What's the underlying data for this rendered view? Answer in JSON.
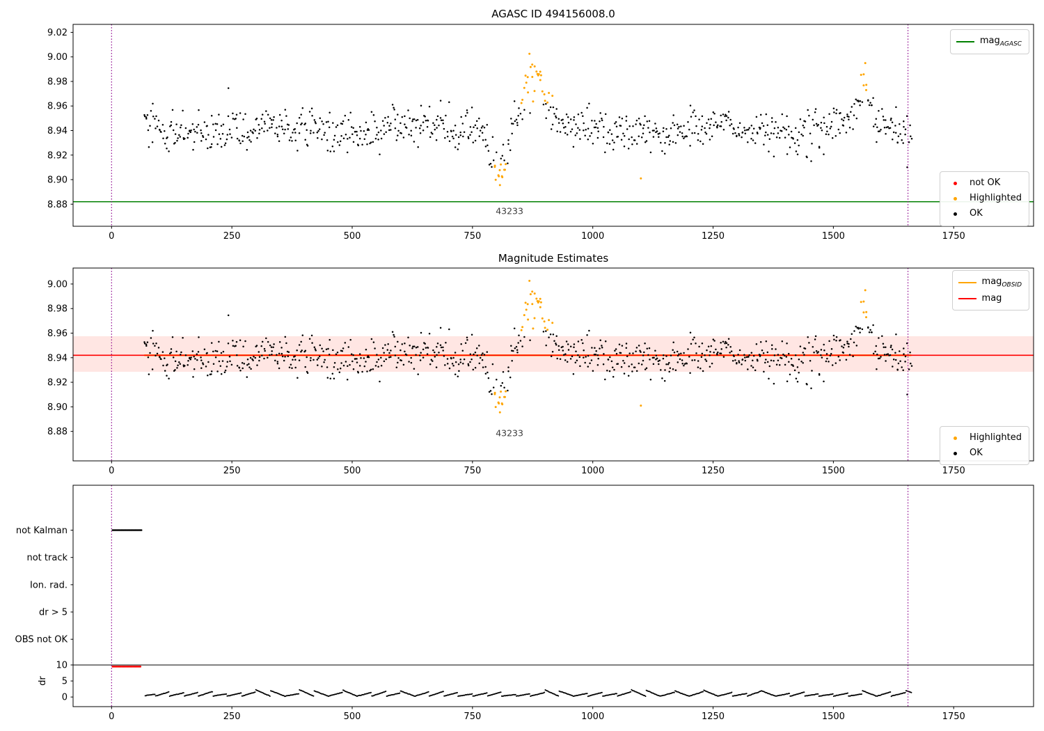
{
  "colors": {
    "ok": "#000000",
    "highlighted": "#ffa500",
    "not_ok": "#ff0000",
    "mag_agasc": "#008000",
    "mag": "#ff0000",
    "vline": "#8b008b",
    "band": "rgba(255,60,40,0.13)",
    "annotation": "#3c3c3c"
  },
  "scatter_spec": {
    "seed": 42,
    "n": 880,
    "x_start": 68,
    "x_end": 1662,
    "base_mag": 8.941,
    "noise_sd": 0.008,
    "waves": [
      {
        "period": 300,
        "amp": 0.0035,
        "phase": 0.5
      },
      {
        "period": 85,
        "amp": 0.0028,
        "phase": 2.1
      },
      {
        "period": 37,
        "amp": 0.002,
        "phase": 4.0
      }
    ],
    "events": [
      {
        "center": 805,
        "width": 14,
        "amp": -0.028
      },
      {
        "center": 878,
        "width": 20,
        "amp": 0.048
      },
      {
        "center": 1563,
        "width": 12,
        "amp": 0.034
      }
    ],
    "highlight_rules": [
      {
        "xmin": 843,
        "xmax": 918,
        "ymin": 8.962
      },
      {
        "xmin": 1546,
        "xmax": 1584,
        "ymin": 8.968
      },
      {
        "xmin": 793,
        "xmax": 822,
        "ymax": 8.913
      }
    ],
    "extra_highlighted": [
      [
        1100,
        8.901
      ],
      [
        807,
        8.8955
      ],
      [
        812,
        8.902
      ],
      [
        816,
        8.908
      ]
    ]
  },
  "chart_data": [
    {
      "type": "scatter",
      "title": "AGASC ID 494156008.0",
      "xlabel": "",
      "ylabel": "",
      "xlim": [
        -80,
        1916
      ],
      "ylim": [
        8.862,
        9.0265
      ],
      "xticks": [
        0,
        250,
        500,
        750,
        1000,
        1250,
        1500,
        1750
      ],
      "yticks": [
        9.02,
        9.0,
        8.98,
        8.96,
        8.94,
        8.92,
        8.9,
        8.88
      ],
      "hline": {
        "y": 8.882,
        "color_key": "mag_agasc"
      },
      "vlines": [
        0,
        1655
      ],
      "annotation": {
        "text": "43233",
        "x": 827,
        "y": 8.872
      },
      "legend_lines": [
        {
          "label": "mag",
          "sub": "AGASC",
          "color_key": "mag_agasc"
        }
      ],
      "legend_markers": [
        {
          "label": "not OK",
          "color_key": "not_ok"
        },
        {
          "label": "Highlighted",
          "color_key": "highlighted"
        },
        {
          "label": "OK",
          "color_key": "ok"
        }
      ]
    },
    {
      "type": "scatter",
      "title": "Magnitude Estimates",
      "xlabel": "",
      "ylabel": "",
      "xlim": [
        -80,
        1916
      ],
      "ylim": [
        8.856,
        9.013
      ],
      "xticks": [
        0,
        250,
        500,
        750,
        1000,
        1250,
        1500,
        1750
      ],
      "yticks": [
        9.0,
        8.98,
        8.96,
        8.94,
        8.92,
        8.9,
        8.88
      ],
      "mean_line": {
        "y": 8.942,
        "color_key": "mag"
      },
      "obsid_line": {
        "y": 8.942,
        "color_key": "highlighted"
      },
      "band": {
        "ymin": 8.9285,
        "ymax": 8.9575
      },
      "vlines": [
        0,
        1655
      ],
      "annotation": {
        "text": "43233",
        "x": 827,
        "y": 8.876
      },
      "legend_lines": [
        {
          "label": "mag",
          "sub": "OBSID",
          "color_key": "highlighted"
        },
        {
          "label": "mag",
          "sub": "",
          "color_key": "mag"
        }
      ],
      "legend_markers": [
        {
          "label": "Highlighted",
          "color_key": "highlighted"
        },
        {
          "label": "OK",
          "color_key": "ok"
        }
      ]
    },
    {
      "type": "scatter",
      "title": "",
      "xlabel": "",
      "ylabel": "dr",
      "xlim": [
        -80,
        1916
      ],
      "ylim": [
        -3,
        66
      ],
      "xticks": [
        0,
        250,
        500,
        750,
        1000,
        1250,
        1500,
        1750
      ],
      "categories": [
        {
          "label": "not Kalman",
          "value": 52
        },
        {
          "label": "not track",
          "value": 43.5
        },
        {
          "label": "Ion. rad.",
          "value": 35
        },
        {
          "label": "dr > 5",
          "value": 26.5
        },
        {
          "label": "OBS not OK",
          "value": 18
        }
      ],
      "dr_ticks": [
        10,
        5,
        0
      ],
      "hline": {
        "y": 10,
        "color_key": "ok"
      },
      "vlines": [
        0,
        1655
      ],
      "runs": [
        {
          "name": "not-kalman-flags",
          "value": 52,
          "x_start": 2,
          "x_end": 62,
          "n": 34,
          "color_key": "ok"
        },
        {
          "name": "dr-clipped",
          "value": 9.5,
          "x_start": 2,
          "x_end": 60,
          "n": 34,
          "color_key": "not_ok"
        }
      ],
      "dr_spec": {
        "seed": 7,
        "n": 880,
        "x_start": 70,
        "x_end": 1662,
        "period": 30,
        "base": 0.25,
        "amp": 1.5,
        "noise": 0.12
      }
    }
  ]
}
